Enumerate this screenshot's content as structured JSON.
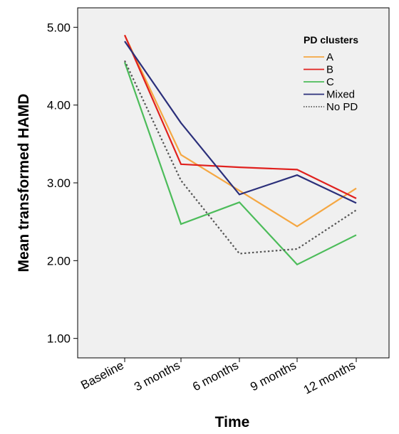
{
  "chart_data": {
    "type": "line",
    "xlabel": "Time",
    "ylabel": "Mean transformed HAMD",
    "categories": [
      "Baseline",
      "3 months",
      "6 months",
      "9 months",
      "12 months"
    ],
    "y_ticks": [
      "1.00",
      "2.00",
      "3.00",
      "4.00",
      "5.00"
    ],
    "ylim": [
      0.75,
      5.25
    ],
    "grid": false,
    "legend_title": "PD clusters",
    "legend_position": "top-right",
    "series": [
      {
        "name": "A",
        "color": "#f5a742",
        "dash": "solid",
        "values": [
          4.9,
          3.36,
          2.9,
          2.44,
          2.93
        ]
      },
      {
        "name": "B",
        "color": "#e0211e",
        "dash": "solid",
        "values": [
          4.9,
          3.24,
          3.2,
          3.17,
          2.8
        ]
      },
      {
        "name": "C",
        "color": "#4cbc5a",
        "dash": "solid",
        "values": [
          4.55,
          2.47,
          2.75,
          1.95,
          2.33
        ]
      },
      {
        "name": "Mixed",
        "color": "#2b2f7a",
        "dash": "solid",
        "values": [
          4.82,
          3.77,
          2.85,
          3.1,
          2.74
        ]
      },
      {
        "name": "No PD",
        "color": "#555555",
        "dash": "dotted",
        "values": [
          4.57,
          3.03,
          2.09,
          2.15,
          2.65
        ]
      }
    ]
  }
}
